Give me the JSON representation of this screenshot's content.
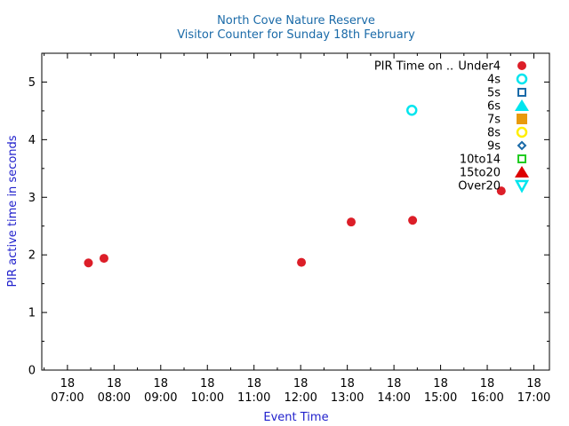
{
  "chart_data": {
    "type": "scatter",
    "title": "North Cove Nature Reserve",
    "subtitle": "Visitor Counter for Sunday 18th February",
    "xlabel": "Event Time",
    "ylabel": "PIR active time in seconds",
    "x_tick_labels": [
      {
        "day": "18",
        "time": "07:00"
      },
      {
        "day": "18",
        "time": "08:00"
      },
      {
        "day": "18",
        "time": "09:00"
      },
      {
        "day": "18",
        "time": "10:00"
      },
      {
        "day": "18",
        "time": "11:00"
      },
      {
        "day": "18",
        "time": "12:00"
      },
      {
        "day": "18",
        "time": "13:00"
      },
      {
        "day": "18",
        "time": "14:00"
      },
      {
        "day": "18",
        "time": "15:00"
      },
      {
        "day": "18",
        "time": "16:00"
      },
      {
        "day": "18",
        "time": "17:00"
      }
    ],
    "xlim": [
      "06:27",
      "17:20"
    ],
    "ylim": [
      0,
      5.5
    ],
    "y_ticks": [
      "0",
      "1",
      "2",
      "3",
      "4",
      "5"
    ],
    "legend_title": "PIR Time on ..",
    "legend_position": "top-right",
    "grid": false,
    "series": [
      {
        "name": "Under4",
        "color": "#dc1e28",
        "marker": "filled-circle",
        "points": [
          {
            "x": "07:27",
            "y": 1.86
          },
          {
            "x": "07:47",
            "y": 1.94
          },
          {
            "x": "12:01",
            "y": 1.87
          },
          {
            "x": "13:05",
            "y": 2.57
          },
          {
            "x": "14:24",
            "y": 2.6
          },
          {
            "x": "16:18",
            "y": 3.11
          }
        ]
      },
      {
        "name": "4s",
        "color": "#00e5ee",
        "marker": "open-circle",
        "points": [
          {
            "x": "14:23",
            "y": 4.51
          }
        ]
      },
      {
        "name": "5s",
        "color": "#1a6aa8",
        "marker": "open-square",
        "points": []
      },
      {
        "name": "6s",
        "color": "#00e5ee",
        "marker": "filled-triangle-up",
        "points": []
      },
      {
        "name": "7s",
        "color": "#e89a0c",
        "marker": "filled-square",
        "points": []
      },
      {
        "name": "8s",
        "color": "#ffee00",
        "marker": "open-circle",
        "points": []
      },
      {
        "name": "9s",
        "color": "#1a6aa8",
        "marker": "open-diamond",
        "points": []
      },
      {
        "name": "10to14",
        "color": "#22cc22",
        "marker": "open-square",
        "points": []
      },
      {
        "name": "15to20",
        "color": "#dd0000",
        "marker": "filled-triangle-up",
        "points": []
      },
      {
        "name": "Over20",
        "color": "#00e5ee",
        "marker": "open-triangle-down",
        "points": []
      }
    ]
  }
}
